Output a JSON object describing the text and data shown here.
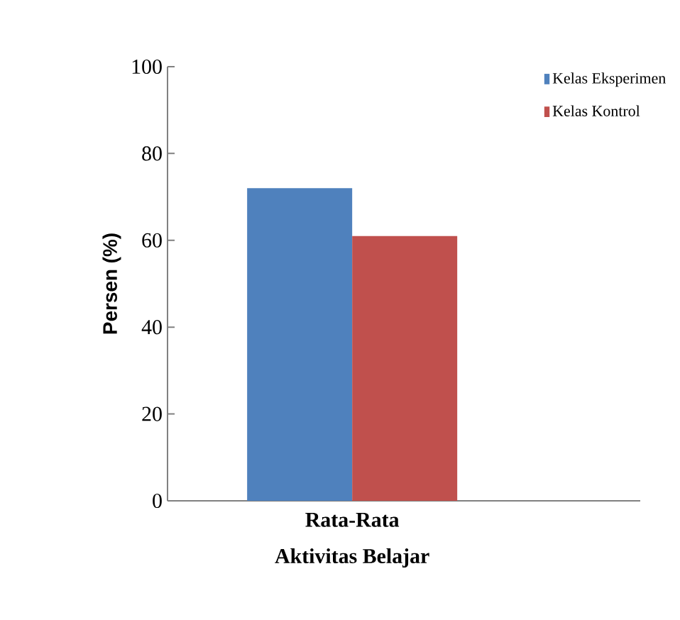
{
  "chart_data": {
    "type": "bar",
    "categories": [
      "Rata-Rata"
    ],
    "xlabel": "Aktivitas Belajar",
    "ylabel": "Persen (%)",
    "series": [
      {
        "name": "Kelas Eksperimen",
        "color": "#4f81bd",
        "values": [
          72
        ]
      },
      {
        "name": "Kelas Kontrol",
        "color": "#c0504d",
        "values": [
          61
        ]
      }
    ],
    "ylim": [
      0,
      100
    ],
    "yticks": [
      0,
      20,
      40,
      60,
      80,
      100
    ],
    "grid": false,
    "legend": "top right"
  }
}
